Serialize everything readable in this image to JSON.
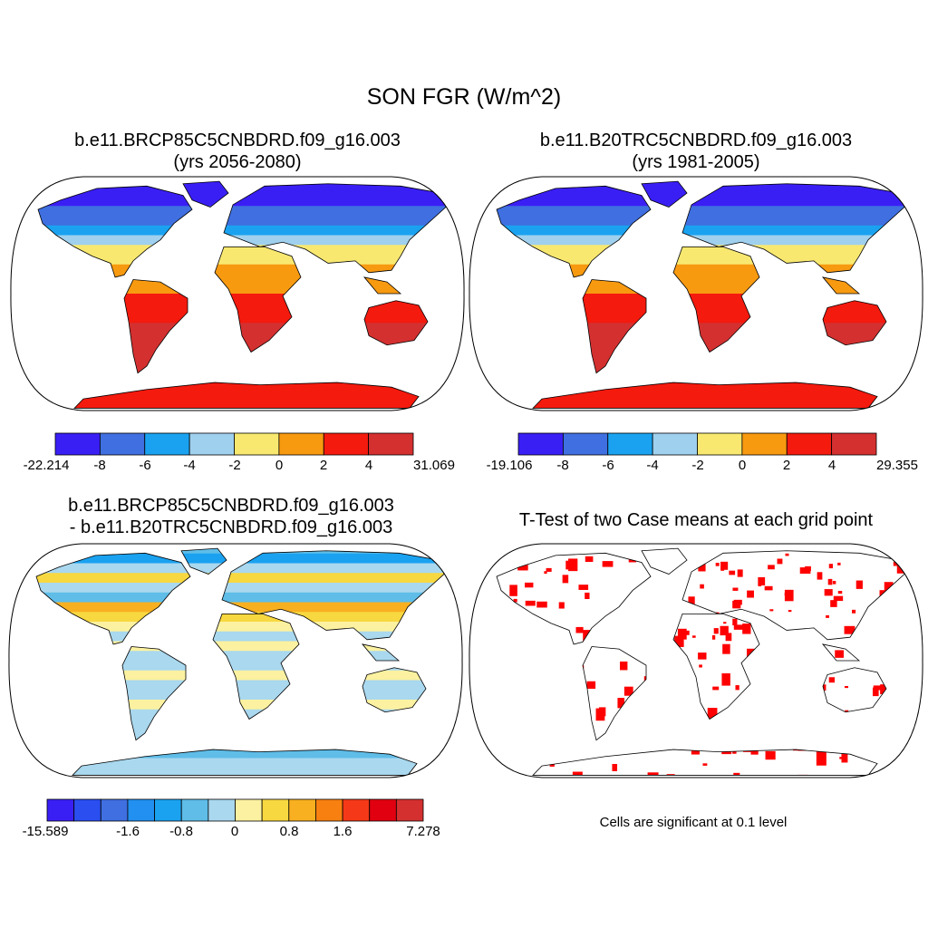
{
  "title": "SON FGR (W/m^2)",
  "panels": [
    {
      "id": "case1",
      "title_line1": "b.e11.BRCP85C5CNBDRD.f09_g16.003",
      "title_line2": "(yrs 2056-2080)",
      "colorbar": {
        "colors": [
          "#3a1ff5",
          "#3f6fe0",
          "#1aa2f0",
          "#9fd0ee",
          "#f8e870",
          "#f89a10",
          "#f41a0e",
          "#d43030"
        ],
        "labels": [
          "-22.214",
          "-8",
          "-6",
          "-4",
          "-2",
          "0",
          "2",
          "4",
          "31.069"
        ]
      }
    },
    {
      "id": "case2",
      "title_line1": "b.e11.B20TRC5CNBDRD.f09_g16.003",
      "title_line2": "(yrs 1981-2005)",
      "colorbar": {
        "colors": [
          "#3a1ff5",
          "#3f6fe0",
          "#1aa2f0",
          "#9fd0ee",
          "#f8e870",
          "#f89a10",
          "#f41a0e",
          "#d43030"
        ],
        "labels": [
          "-19.106",
          "-8",
          "-6",
          "-4",
          "-2",
          "0",
          "2",
          "4",
          "29.355"
        ]
      }
    },
    {
      "id": "diff",
      "title_line1": "b.e11.BRCP85C5CNBDRD.f09_g16.003",
      "title_line2": "- b.e11.B20TRC5CNBDRD.f09_g16.003",
      "colorbar": {
        "colors": [
          "#3a1ff5",
          "#2a4ef0",
          "#3f6fe0",
          "#2290f0",
          "#1aa2f0",
          "#5fbde8",
          "#a9d8ef",
          "#fbf1a0",
          "#f8d840",
          "#f8b020",
          "#f88010",
          "#f43818",
          "#e00010",
          "#d43030"
        ],
        "labels": [
          "-15.589",
          "-1.6",
          "-0.8",
          "0",
          "0.8",
          "1.6",
          "7.278"
        ]
      }
    },
    {
      "id": "ttest",
      "title_line1": "T-Test of two Case means at each grid point",
      "note": "Cells are significant at 0.1 level",
      "sig_color": "#ff0000"
    }
  ]
}
